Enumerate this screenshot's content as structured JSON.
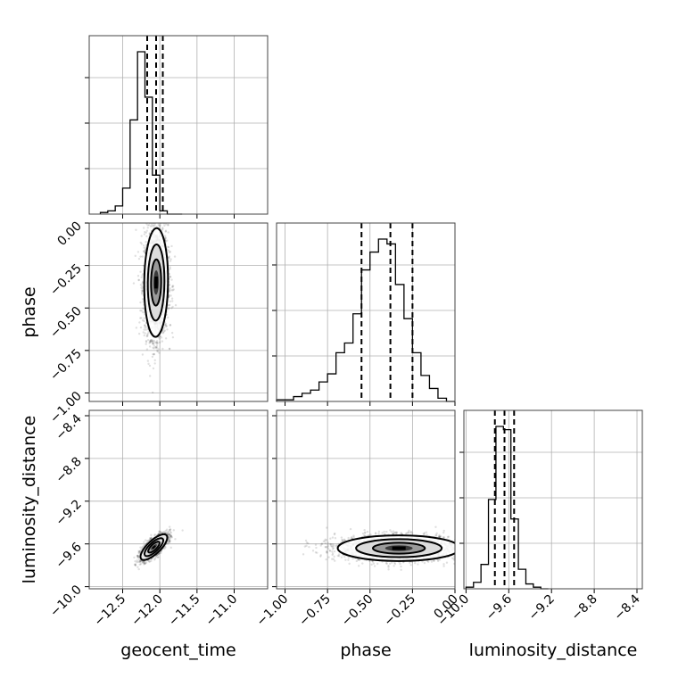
{
  "chart_data": {
    "type": "corner",
    "parameters": [
      {
        "key": "geocent_time",
        "label": "geocent_time",
        "range": [
          -12.95,
          -10.55
        ],
        "ticks": [
          -12.5,
          -12.0,
          -11.5,
          -11.0
        ],
        "tick_labels": [
          "−12.5",
          "−12.0",
          "−11.5",
          "−11.0"
        ]
      },
      {
        "key": "phase",
        "label": "phase",
        "range": [
          -1.05,
          0.0
        ],
        "ticks": [
          -1.0,
          -0.75,
          -0.5,
          -0.25,
          0.0
        ],
        "tick_labels": [
          "−1.00",
          "−0.75",
          "−0.50",
          "−0.25",
          "0.00"
        ]
      },
      {
        "key": "luminosity_distance",
        "label": "luminosity_distance",
        "range": [
          -10.02,
          -8.35
        ],
        "ticks": [
          -10.0,
          -9.6,
          -9.2,
          -8.8,
          -8.4
        ],
        "tick_labels": [
          "−10.0",
          "−9.6",
          "−9.2",
          "−8.8",
          "−8.4"
        ]
      }
    ],
    "histograms": {
      "geocent_time": {
        "bin_edges": [
          -12.8,
          -12.7,
          -12.6,
          -12.5,
          -12.4,
          -12.3,
          -12.2,
          -12.1,
          -12.0,
          -11.9,
          -11.8,
          -11.7
        ],
        "counts": [
          0.01,
          0.02,
          0.05,
          0.16,
          0.58,
          1.0,
          0.72,
          0.24,
          0.02,
          0.0,
          0.0
        ],
        "quantiles": [
          -12.17,
          -12.05,
          -11.96
        ]
      },
      "phase": {
        "bin_edges": [
          -1.05,
          -1.0,
          -0.95,
          -0.9,
          -0.85,
          -0.8,
          -0.75,
          -0.7,
          -0.65,
          -0.6,
          -0.55,
          -0.5,
          -0.45,
          -0.4,
          -0.35,
          -0.3,
          -0.25,
          -0.2,
          -0.15,
          -0.1,
          -0.05,
          0.0
        ],
        "counts": [
          0.01,
          0.01,
          0.03,
          0.05,
          0.07,
          0.12,
          0.17,
          0.3,
          0.36,
          0.54,
          0.81,
          0.92,
          1.0,
          0.97,
          0.72,
          0.51,
          0.3,
          0.16,
          0.08,
          0.02,
          0.0
        ],
        "quantiles": [
          -0.55,
          -0.38,
          -0.25
        ]
      },
      "luminosity_distance": {
        "bin_edges": [
          -10.0,
          -9.93,
          -9.86,
          -9.79,
          -9.72,
          -9.65,
          -9.58,
          -9.51,
          -9.44,
          -9.37,
          -9.3,
          -9.23
        ],
        "counts": [
          0.01,
          0.04,
          0.15,
          0.55,
          1.0,
          0.98,
          0.43,
          0.12,
          0.03,
          0.01,
          0.0
        ],
        "quantiles": [
          -9.73,
          -9.64,
          -9.55
        ]
      }
    },
    "pairs": [
      {
        "x": "geocent_time",
        "y": "phase",
        "center": [
          -12.05,
          -0.35
        ],
        "sigma": [
          0.08,
          0.16
        ],
        "rho": 0.05,
        "scatter_points": 2400
      },
      {
        "x": "geocent_time",
        "y": "luminosity_distance",
        "center": [
          -12.08,
          -9.63
        ],
        "sigma": [
          0.09,
          0.06
        ],
        "rho": 0.75,
        "scatter_points": 1800
      },
      {
        "x": "phase",
        "y": "luminosity_distance",
        "center": [
          -0.33,
          -9.64
        ],
        "sigma": [
          0.18,
          0.06
        ],
        "rho": 0.0,
        "scatter_points": 2400
      }
    ],
    "grid": true
  }
}
